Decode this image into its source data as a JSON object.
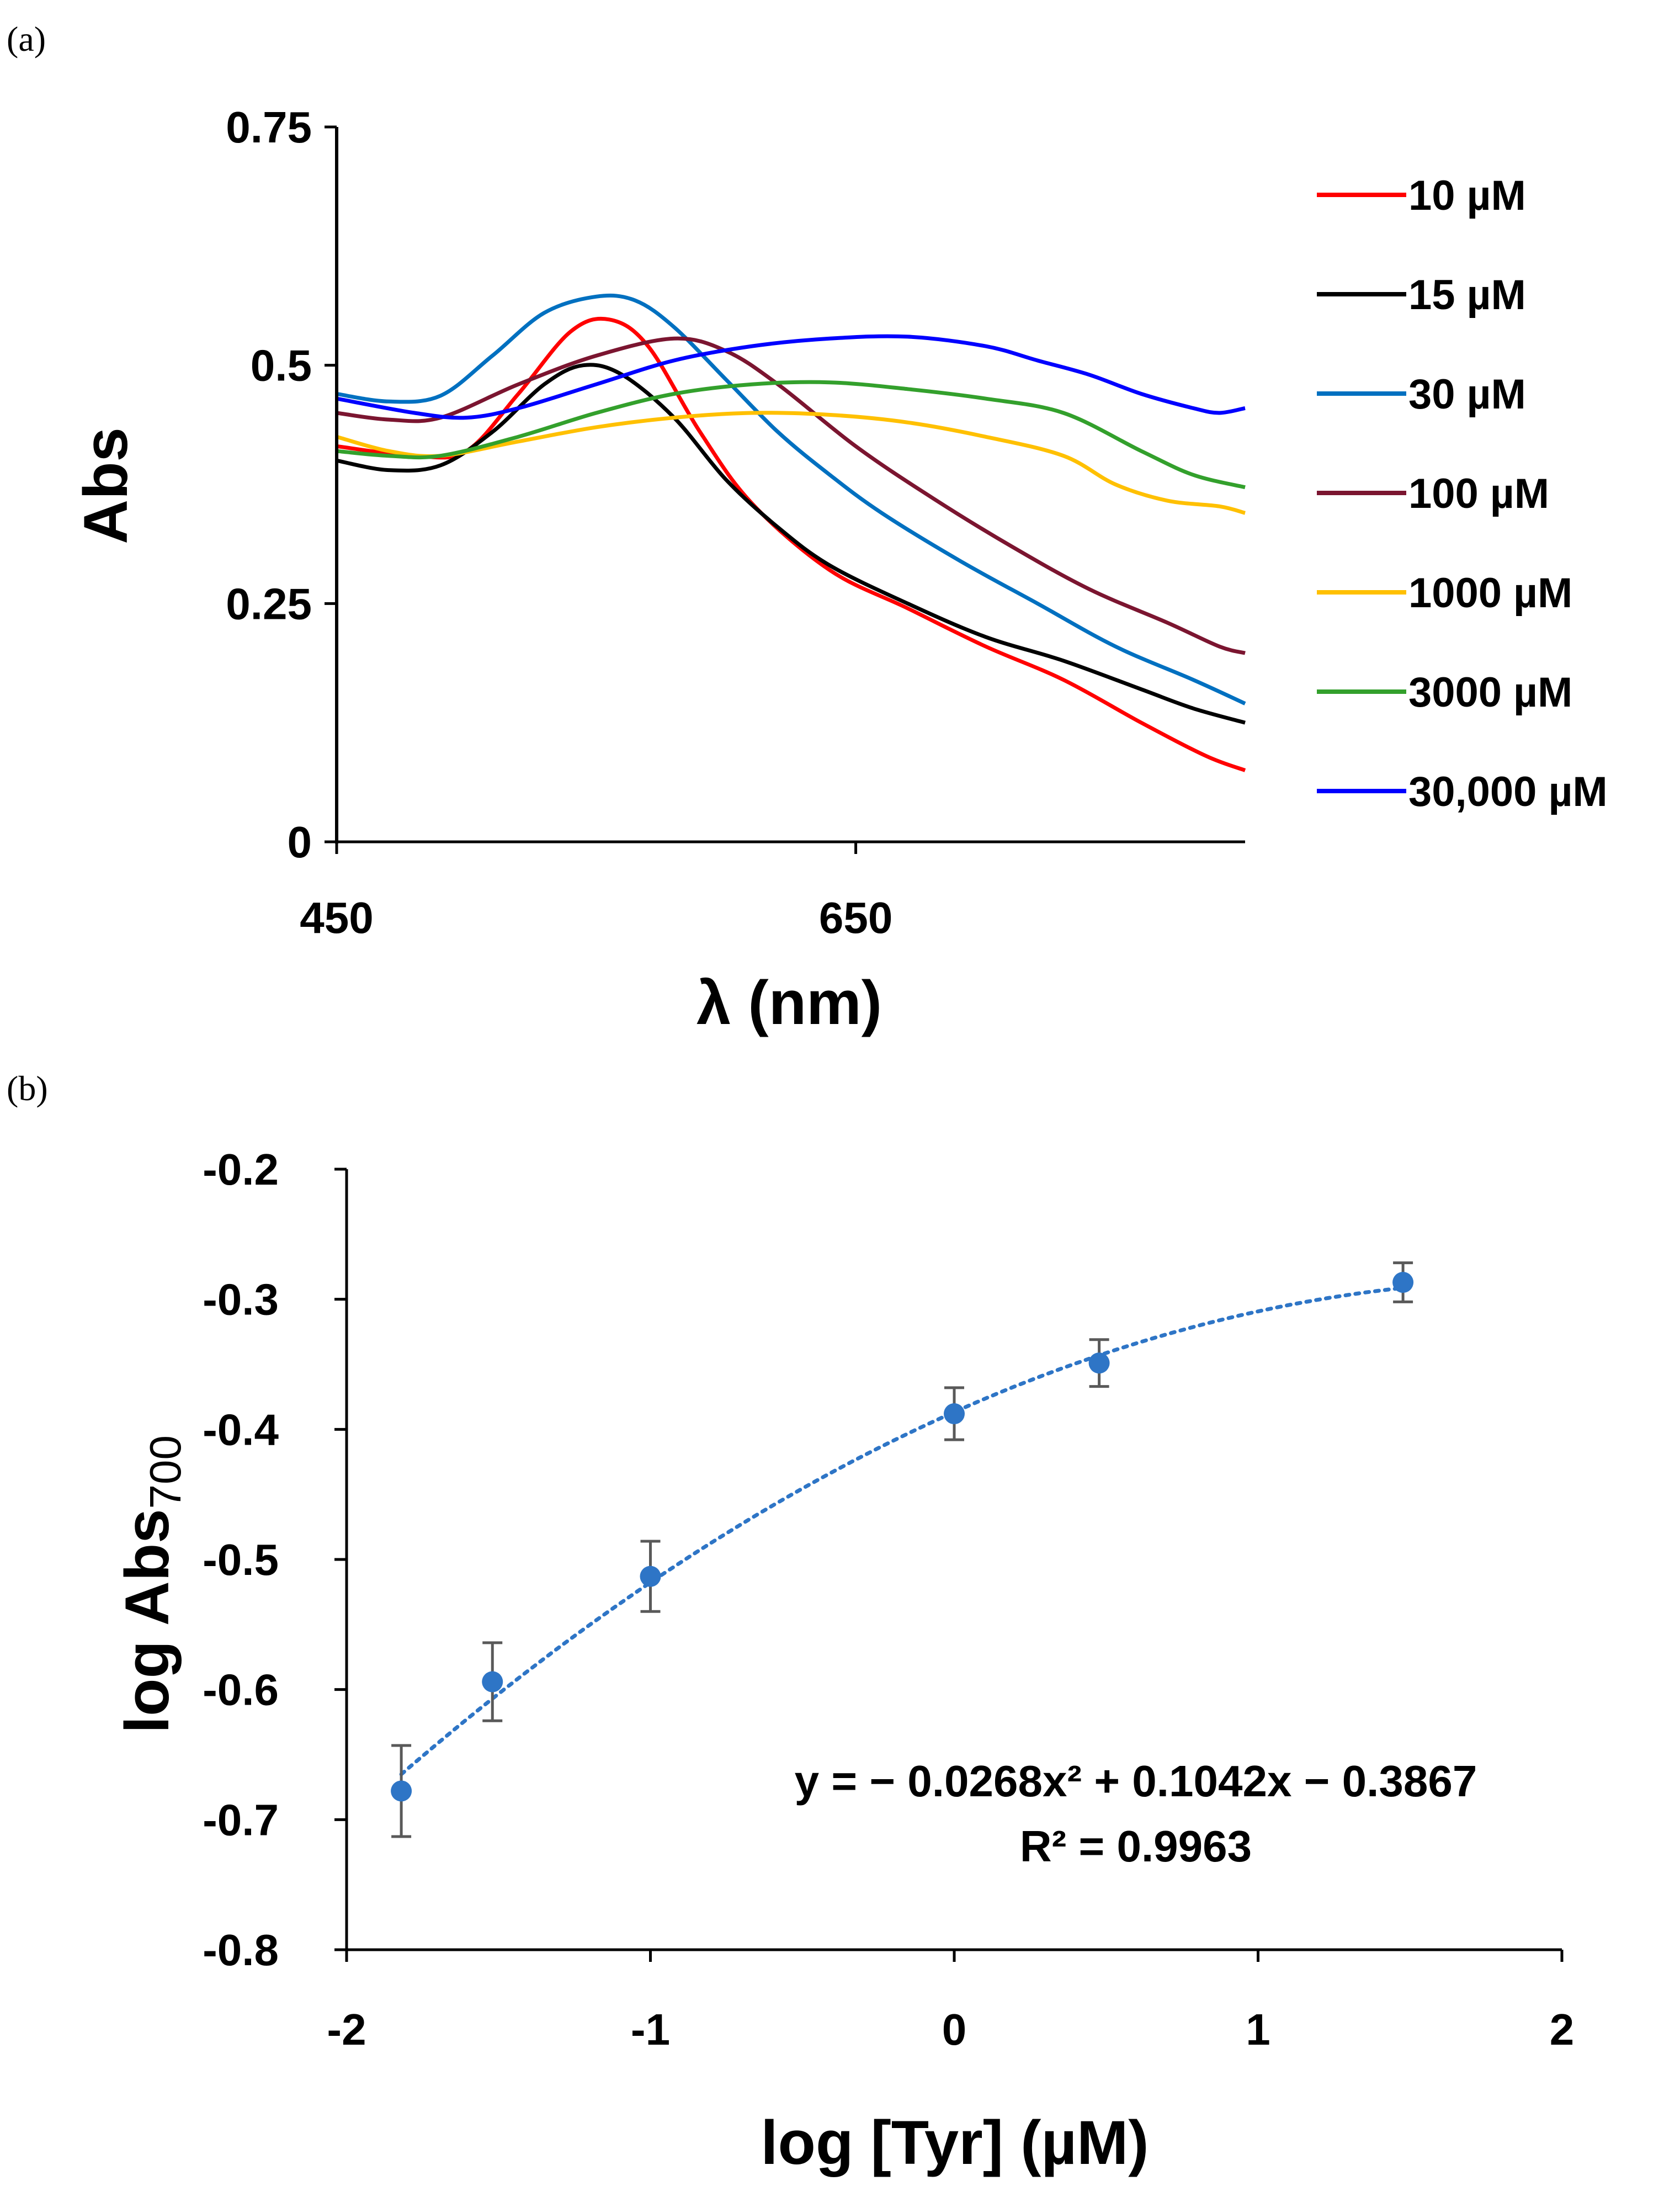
{
  "chart_data": [
    {
      "panel": "(a)",
      "type": "line",
      "title": "",
      "xlabel": "λ (nm)",
      "ylabel": "Abs",
      "xlim": [
        450,
        800
      ],
      "ylim": [
        0,
        0.75
      ],
      "x_ticks": [
        450,
        650
      ],
      "x_tick_labels": [
        "450",
        "650"
      ],
      "y_ticks": [
        0,
        0.25,
        0.5,
        0.75
      ],
      "y_tick_labels": [
        "0",
        "0.25",
        "0.5",
        "0.75"
      ],
      "grid": false,
      "legend_position": "right",
      "series": [
        {
          "name": "10 µM",
          "color": "#ff0000",
          "x": [
            450,
            480,
            500,
            520,
            540,
            555,
            570,
            590,
            610,
            640,
            670,
            700,
            730,
            760,
            785,
            800
          ],
          "y": [
            0.415,
            0.405,
            0.41,
            0.47,
            0.535,
            0.548,
            0.52,
            0.43,
            0.355,
            0.285,
            0.245,
            0.205,
            0.17,
            0.125,
            0.09,
            0.075
          ]
        },
        {
          "name": "15 µM",
          "color": "#000000",
          "x": [
            450,
            470,
            490,
            510,
            530,
            545,
            560,
            580,
            600,
            620,
            640,
            670,
            700,
            730,
            760,
            780,
            800
          ],
          "y": [
            0.4,
            0.39,
            0.395,
            0.43,
            0.48,
            0.5,
            0.49,
            0.445,
            0.38,
            0.33,
            0.29,
            0.25,
            0.215,
            0.19,
            0.16,
            0.14,
            0.125
          ]
        },
        {
          "name": "30 µM",
          "color": "#0070c0",
          "x": [
            450,
            470,
            490,
            510,
            530,
            550,
            565,
            580,
            600,
            620,
            640,
            660,
            690,
            720,
            750,
            780,
            800
          ],
          "y": [
            0.47,
            0.462,
            0.468,
            0.51,
            0.555,
            0.572,
            0.568,
            0.54,
            0.485,
            0.43,
            0.385,
            0.345,
            0.295,
            0.25,
            0.205,
            0.17,
            0.145
          ]
        },
        {
          "name": "100 µM",
          "color": "#7b1530",
          "x": [
            450,
            470,
            490,
            520,
            550,
            580,
            600,
            620,
            650,
            680,
            710,
            740,
            770,
            790,
            800
          ],
          "y": [
            0.45,
            0.443,
            0.445,
            0.48,
            0.51,
            0.528,
            0.515,
            0.48,
            0.415,
            0.36,
            0.31,
            0.265,
            0.23,
            0.205,
            0.198
          ]
        },
        {
          "name": "1000 µM",
          "color": "#ffc000",
          "x": [
            450,
            470,
            490,
            520,
            550,
            580,
            610,
            640,
            670,
            700,
            730,
            750,
            770,
            790,
            800
          ],
          "y": [
            0.425,
            0.41,
            0.405,
            0.42,
            0.435,
            0.445,
            0.45,
            0.448,
            0.44,
            0.425,
            0.405,
            0.375,
            0.358,
            0.352,
            0.345
          ]
        },
        {
          "name": "3000 µM",
          "color": "#33a02c",
          "x": [
            450,
            470,
            490,
            520,
            550,
            580,
            610,
            640,
            670,
            700,
            730,
            760,
            780,
            800
          ],
          "y": [
            0.41,
            0.405,
            0.405,
            0.425,
            0.45,
            0.47,
            0.48,
            0.482,
            0.475,
            0.465,
            0.45,
            0.41,
            0.385,
            0.372
          ]
        },
        {
          "name": "30,000 µM",
          "color": "#0000ff",
          "x": [
            450,
            480,
            500,
            520,
            550,
            580,
            610,
            640,
            670,
            700,
            720,
            740,
            760,
            780,
            790,
            800
          ],
          "y": [
            0.465,
            0.45,
            0.445,
            0.455,
            0.48,
            0.505,
            0.52,
            0.528,
            0.53,
            0.52,
            0.505,
            0.49,
            0.47,
            0.455,
            0.45,
            0.455
          ]
        }
      ]
    },
    {
      "panel": "(b)",
      "type": "scatter",
      "title": "",
      "xlabel": "log [Tyr] (µM)",
      "ylabel": "log Abs",
      "ylabel_subscript": "700",
      "xlim": [
        -2,
        2
      ],
      "ylim": [
        -0.8,
        -0.2
      ],
      "x_ticks": [
        -2,
        -1,
        0,
        1,
        2
      ],
      "x_tick_labels": [
        "-2",
        "-1",
        "0",
        "1",
        "2"
      ],
      "y_ticks": [
        -0.8,
        -0.7,
        -0.6,
        -0.5,
        -0.4,
        -0.3,
        -0.2
      ],
      "y_tick_labels": [
        "-0.8",
        "-0.7",
        "-0.6",
        "-0.5",
        "-0.4",
        "-0.3",
        "-0.2"
      ],
      "grid": false,
      "marker_color": "#2e75c6",
      "errorbar_color": "#595959",
      "series": [
        {
          "name": "log Abs700",
          "x": [
            -1.82,
            -1.52,
            -1.0,
            0.0,
            0.477,
            1.477
          ],
          "y": [
            -0.678,
            -0.594,
            -0.513,
            -0.388,
            -0.349,
            -0.287
          ],
          "yerr": [
            0.035,
            0.03,
            0.027,
            0.02,
            0.018,
            0.015
          ]
        }
      ],
      "fit": {
        "type": "polynomial",
        "coefficients": [
          -0.0268,
          0.1042,
          -0.3867
        ],
        "x_range": [
          -1.82,
          1.477
        ],
        "style": "dotted",
        "color": "#2e75c6",
        "equation": "y = − 0.0268x² + 0.1042x − 0.3867",
        "r_squared": "R² = 0.9963"
      }
    }
  ]
}
